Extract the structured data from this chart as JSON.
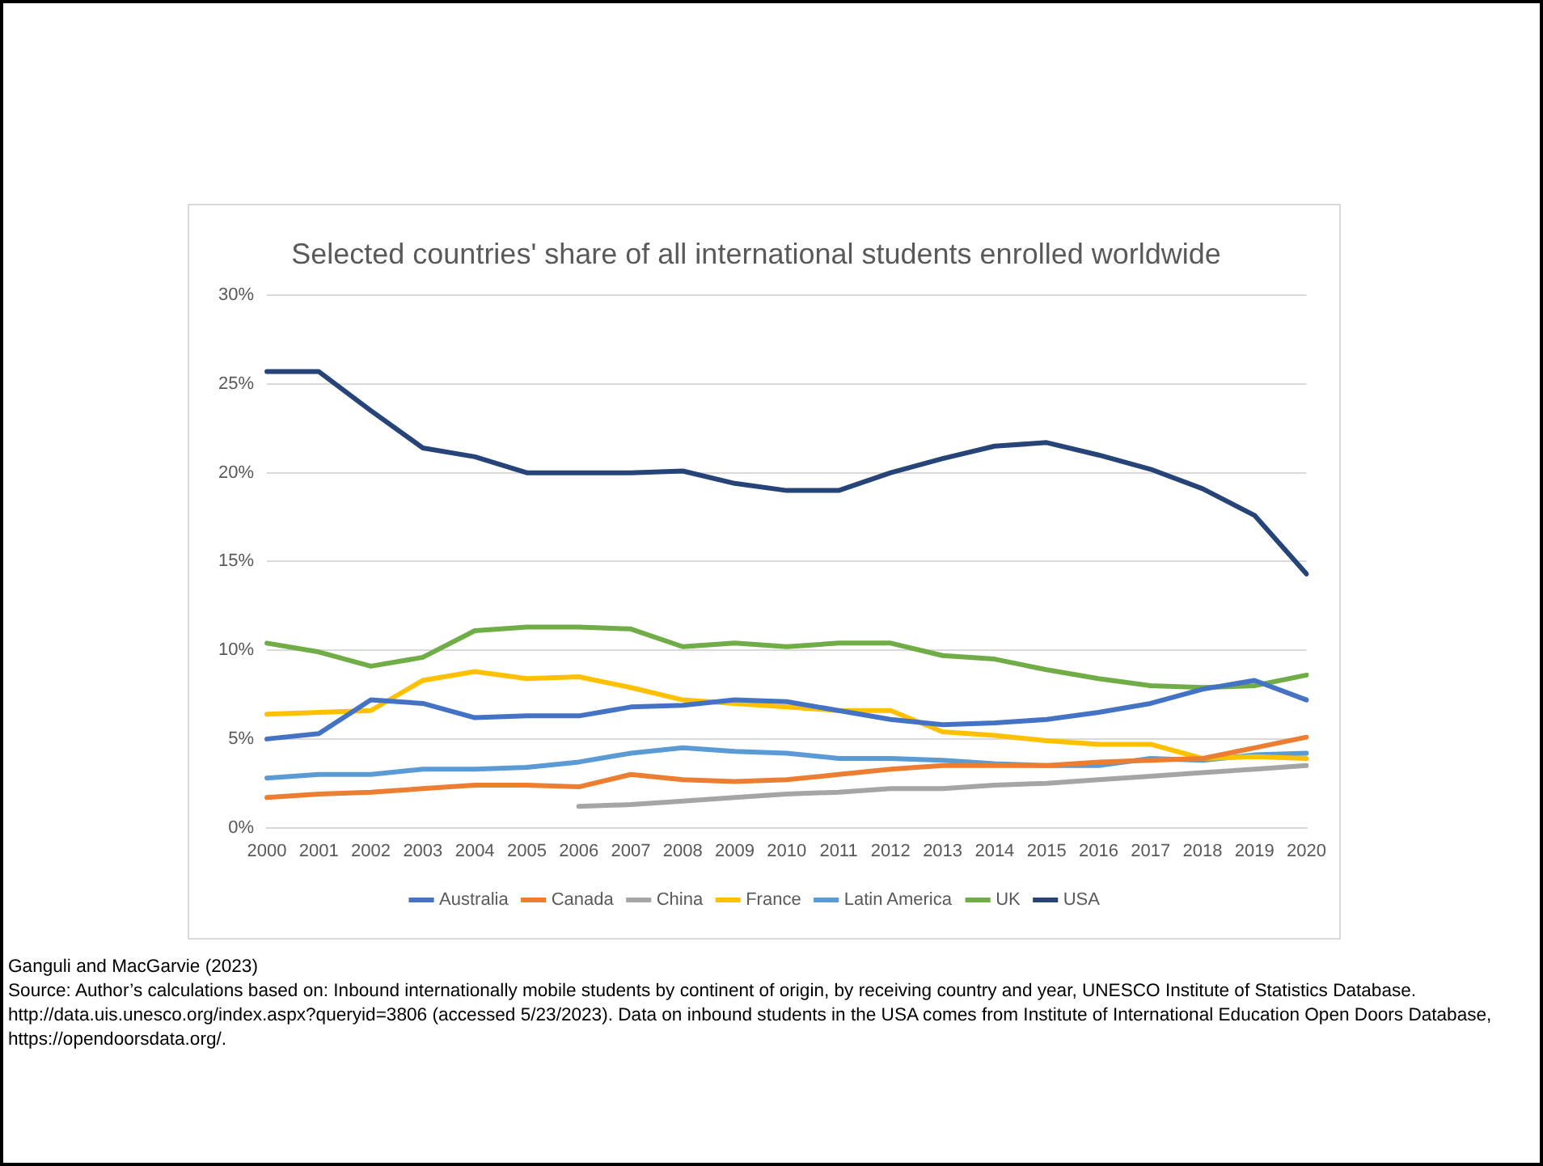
{
  "chart_data": {
    "type": "line",
    "title": "Selected countries' share of all international students enrolled worldwide",
    "categories": [
      "2000",
      "2001",
      "2002",
      "2003",
      "2004",
      "2005",
      "2006",
      "2007",
      "2008",
      "2009",
      "2010",
      "2011",
      "2012",
      "2013",
      "2014",
      "2015",
      "2016",
      "2017",
      "2018",
      "2019",
      "2020"
    ],
    "series": [
      {
        "name": "Australia",
        "color": "#4472c4",
        "values": [
          5.0,
          5.3,
          7.2,
          7.0,
          6.2,
          6.3,
          6.3,
          6.8,
          6.9,
          7.2,
          7.1,
          6.6,
          6.1,
          5.8,
          5.9,
          6.1,
          6.5,
          7.0,
          7.8,
          8.3,
          7.2
        ]
      },
      {
        "name": "Canada",
        "color": "#ed7d31",
        "values": [
          1.7,
          1.9,
          2.0,
          2.2,
          2.4,
          2.4,
          2.3,
          3.0,
          2.7,
          2.6,
          2.7,
          3.0,
          3.3,
          3.5,
          3.5,
          3.5,
          3.7,
          3.8,
          3.9,
          4.5,
          5.1
        ]
      },
      {
        "name": "China",
        "color": "#a5a5a5",
        "values": [
          null,
          null,
          null,
          null,
          null,
          null,
          1.2,
          1.3,
          1.5,
          1.7,
          1.9,
          2.0,
          2.2,
          2.2,
          2.4,
          2.5,
          2.7,
          2.9,
          3.1,
          3.3,
          3.5
        ]
      },
      {
        "name": "France",
        "color": "#ffc000",
        "values": [
          6.4,
          6.5,
          6.6,
          8.3,
          8.8,
          8.4,
          8.5,
          7.9,
          7.2,
          7.0,
          6.8,
          6.6,
          6.6,
          5.4,
          5.2,
          4.9,
          4.7,
          4.7,
          3.9,
          4.0,
          3.9
        ]
      },
      {
        "name": "Latin America",
        "color": "#5b9bd5",
        "values": [
          2.8,
          3.0,
          3.0,
          3.3,
          3.3,
          3.4,
          3.7,
          4.2,
          4.5,
          4.3,
          4.2,
          3.9,
          3.9,
          3.8,
          3.6,
          3.5,
          3.5,
          3.9,
          3.8,
          4.1,
          4.2
        ]
      },
      {
        "name": "UK",
        "color": "#70ad47",
        "values": [
          10.4,
          9.9,
          9.1,
          9.6,
          11.1,
          11.3,
          11.3,
          11.2,
          10.2,
          10.4,
          10.2,
          10.4,
          10.4,
          9.7,
          9.5,
          8.9,
          8.4,
          8.0,
          7.9,
          8.0,
          8.6
        ]
      },
      {
        "name": "USA",
        "color": "#264478",
        "values": [
          25.7,
          25.7,
          23.5,
          21.4,
          20.9,
          20.0,
          20.0,
          20.0,
          20.1,
          19.4,
          19.0,
          19.0,
          20.0,
          20.8,
          21.5,
          21.7,
          21.0,
          20.2,
          19.1,
          17.6,
          14.3
        ]
      }
    ],
    "ylim": [
      0,
      30
    ],
    "yticks": [
      {
        "value": 0,
        "label": "0%"
      },
      {
        "value": 5,
        "label": "5%"
      },
      {
        "value": 10,
        "label": "10%"
      },
      {
        "value": 15,
        "label": "15%"
      },
      {
        "value": 20,
        "label": "20%"
      },
      {
        "value": 25,
        "label": "25%"
      },
      {
        "value": 30,
        "label": "30%"
      }
    ],
    "grid": "y",
    "legend": "bottom",
    "marker": "none",
    "line_style": "solid",
    "annotations": [
      "Ganguli and MacGarvie (2023)",
      "Source: Author’s calculations based on: Inbound internationally mobile students by continent of origin, by receiving country and year, UNESCO Institute of Statistics Database. http://data.uis.unesco.org/index.aspx?queryid=3806 (accessed 5/23/2023). Data on inbound students in the USA comes from Institute of International Education Open Doors Database, https://opendoorsdata.org/."
    ]
  }
}
